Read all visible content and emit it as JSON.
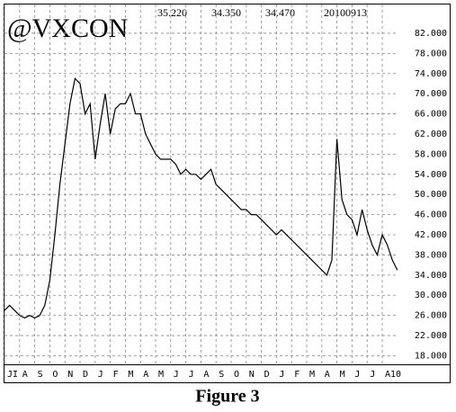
{
  "chart_data": {
    "type": "line",
    "title": "@VXCON",
    "annotations": [
      "35.220",
      "34.350",
      "34.470",
      "20100913"
    ],
    "categories": [
      "JI",
      null,
      null,
      "A",
      null,
      null,
      "S",
      null,
      null,
      "O",
      null,
      null,
      "N",
      null,
      null,
      "D",
      null,
      null,
      "J",
      null,
      null,
      "F",
      null,
      null,
      "M",
      null,
      null,
      "A",
      null,
      null,
      "M",
      null,
      null,
      "J",
      null,
      null,
      "J",
      null,
      null,
      "A",
      null,
      null,
      "S",
      null,
      null,
      "O",
      null,
      null,
      "N",
      null,
      null,
      "D",
      null,
      null,
      "J",
      null,
      null,
      "F",
      null,
      null,
      "M",
      null,
      null,
      "A",
      null,
      null,
      "M",
      null,
      null,
      "J",
      null,
      null,
      "J",
      null,
      null,
      "A10",
      null,
      null,
      null
    ],
    "series": [
      {
        "color": "#000000",
        "values": [
          27,
          28,
          27,
          26,
          25.5,
          26,
          25.5,
          26,
          28,
          33,
          42,
          52,
          60,
          68,
          73,
          72,
          66,
          68,
          57,
          64,
          70,
          62,
          67,
          68,
          68,
          70,
          66,
          66,
          62,
          60,
          58,
          57,
          57,
          57,
          56,
          54,
          55,
          54,
          54,
          53,
          54,
          55,
          52,
          51,
          50,
          49,
          48,
          47,
          47,
          46,
          46,
          45,
          44,
          43,
          42,
          43,
          42,
          41,
          40,
          39,
          38,
          37,
          36,
          35,
          34,
          37,
          61,
          49,
          46,
          45,
          42,
          47,
          43,
          40,
          38,
          42,
          40,
          37,
          35
        ]
      }
    ],
    "ylim": [
      16.3,
      87.7
    ],
    "yticks": [
      {
        "value": 18,
        "label": "18.000"
      },
      {
        "value": 22,
        "label": "22.000"
      },
      {
        "value": 26,
        "label": "26.000"
      },
      {
        "value": 30,
        "label": "30.000"
      },
      {
        "value": 34,
        "label": "34.000"
      },
      {
        "value": 38,
        "label": "38.000"
      },
      {
        "value": 42,
        "label": "42.000"
      },
      {
        "value": 46,
        "label": "46.000"
      },
      {
        "value": 50,
        "label": "50.000"
      },
      {
        "value": 54,
        "label": "54.000"
      },
      {
        "value": 58,
        "label": "58.000"
      },
      {
        "value": 62,
        "label": "62.000"
      },
      {
        "value": 66,
        "label": "66.000"
      },
      {
        "value": 70,
        "label": "70.000"
      },
      {
        "value": 74,
        "label": "74.000"
      },
      {
        "value": 78,
        "label": "78.000"
      },
      {
        "value": 82,
        "label": "82.000"
      }
    ],
    "grid": true
  },
  "caption": "Figure 3"
}
